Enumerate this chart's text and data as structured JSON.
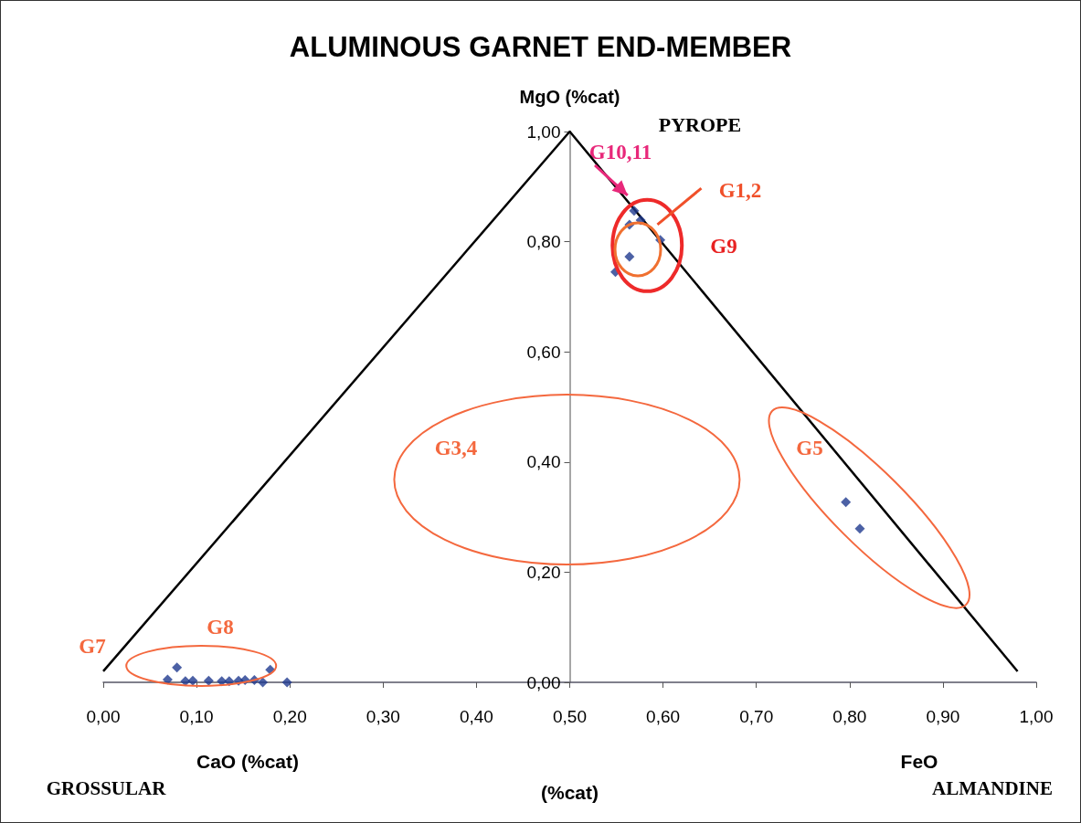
{
  "chart_data": {
    "type": "scatter",
    "title": "ALUMINOUS GARNET END-MEMBER",
    "xlabel": "(%cat)",
    "ylabel": "MgO (%cat)",
    "xlim": [
      0,
      1
    ],
    "ylim": [
      0,
      1
    ],
    "xticks": [
      {
        "value": 0,
        "label": "0,00"
      },
      {
        "value": 0.1,
        "label": "0,10"
      },
      {
        "value": 0.2,
        "label": "0,20"
      },
      {
        "value": 0.3,
        "label": "0,30"
      },
      {
        "value": 0.4,
        "label": "0,40"
      },
      {
        "value": 0.5,
        "label": "0,50"
      },
      {
        "value": 0.6,
        "label": "0,60"
      },
      {
        "value": 0.7,
        "label": "0,70"
      },
      {
        "value": 0.8,
        "label": "0,80"
      },
      {
        "value": 0.9,
        "label": "0,90"
      },
      {
        "value": 1,
        "label": "1,00"
      }
    ],
    "yticks": [
      {
        "value": 0,
        "label": "0,00"
      },
      {
        "value": 0.2,
        "label": "0,20"
      },
      {
        "value": 0.4,
        "label": "0,40"
      },
      {
        "value": 0.6,
        "label": "0,60"
      },
      {
        "value": 0.8,
        "label": "0,80"
      },
      {
        "value": 1,
        "label": "1,00"
      }
    ],
    "grid": false,
    "series": [
      {
        "color": "#1f3a8f",
        "marker": "diamond",
        "x": [
          0.569,
          0.564,
          0.576,
          0.597,
          0.564,
          0.549,
          0.796,
          0.811,
          0.079,
          0.069,
          0.088,
          0.096,
          0.113,
          0.127,
          0.135,
          0.145,
          0.152,
          0.162,
          0.171,
          0.179,
          0.197
        ],
        "values": [
          0.856,
          0.831,
          0.839,
          0.803,
          0.773,
          0.745,
          0.327,
          0.279,
          0.027,
          0.005,
          0.002,
          0.003,
          0.003,
          0.002,
          0.002,
          0.003,
          0.004,
          0.004,
          0.0,
          0.023,
          0.0
        ]
      },
      {
        "type": "line",
        "color": "#000000",
        "marker": "none",
        "x": [
          0,
          0.5,
          0.98
        ],
        "values": [
          0.02,
          1,
          0.02
        ]
      }
    ],
    "annotations": [
      "G10,11",
      "G1,2",
      "G9",
      "G3,4",
      "G5",
      "G8",
      "G7",
      "PYROPE",
      "CaO (%cat)",
      "FeO",
      "GROSSULAR",
      "ALMANDINE"
    ]
  }
}
